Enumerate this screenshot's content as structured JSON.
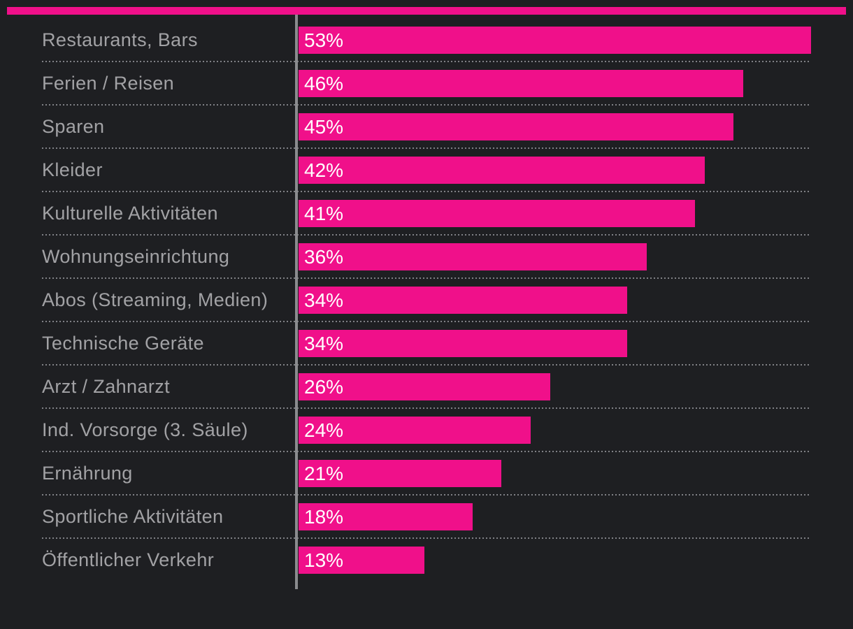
{
  "colors": {
    "background": "#1E1F22",
    "bar": "#F0108A",
    "accent_stripe": "#F0108A",
    "category_label": "#A2A2A5",
    "value_label": "#FFFFFF",
    "axis_line": "#8A8B8E",
    "separator_dots": "#808186"
  },
  "chart_data": {
    "type": "bar",
    "orientation": "horizontal",
    "title": "",
    "categories": [
      "Restaurants, Bars",
      "Ferien / Reisen",
      "Sparen",
      "Kleider",
      "Kulturelle Aktivitäten",
      "Wohnungseinrichtung",
      "Abos (Streaming, Medien)",
      "Technische Geräte",
      "Arzt / Zahnarzt",
      "Ind. Vorsorge (3. Säule)",
      "Ernährung",
      "Sportliche Aktivitäten",
      "Öffentlicher Verkehr"
    ],
    "values": [
      53,
      46,
      45,
      42,
      41,
      36,
      34,
      34,
      26,
      24,
      21,
      18,
      13
    ],
    "value_labels": [
      "53%",
      "46%",
      "45%",
      "42%",
      "41%",
      "36%",
      "34%",
      "34%",
      "26%",
      "24%",
      "21%",
      "18%",
      "13%"
    ],
    "unit": "%",
    "xlim": [
      0,
      57.3
    ],
    "xlabel": "",
    "ylabel": "",
    "legend": "none",
    "grid": "dotted-row-separators"
  }
}
